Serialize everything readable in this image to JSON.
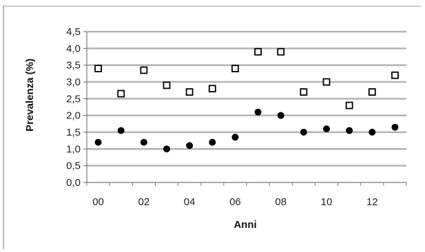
{
  "chart_data": {
    "type": "scatter",
    "title": "",
    "xlabel": "Anni",
    "ylabel": "Prevalenza (%)",
    "x": [
      0,
      1,
      2,
      3,
      4,
      5,
      6,
      7,
      8,
      9,
      10,
      11,
      12,
      13
    ],
    "xticks": [
      "00",
      "02",
      "04",
      "06",
      "08",
      "10",
      "12"
    ],
    "xlim": [
      -0.5,
      13.5
    ],
    "ylim": [
      0,
      4.5
    ],
    "yticks": [
      "0,0",
      "0,5",
      "1,0",
      "1,5",
      "2,0",
      "2,5",
      "3,0",
      "3,5",
      "4,0",
      "4,5"
    ],
    "grid": "horizontal",
    "series": [
      {
        "marker": "open-square",
        "color": "#000000",
        "values": [
          3.4,
          2.65,
          3.35,
          2.9,
          2.7,
          2.8,
          3.4,
          3.9,
          3.9,
          2.7,
          3.0,
          2.3,
          2.7,
          3.2
        ]
      },
      {
        "marker": "filled-circle",
        "color": "#000000",
        "values": [
          1.2,
          1.55,
          1.2,
          1.0,
          1.1,
          1.2,
          1.35,
          2.1,
          2.0,
          1.5,
          1.6,
          1.55,
          1.5,
          1.65
        ]
      }
    ]
  }
}
